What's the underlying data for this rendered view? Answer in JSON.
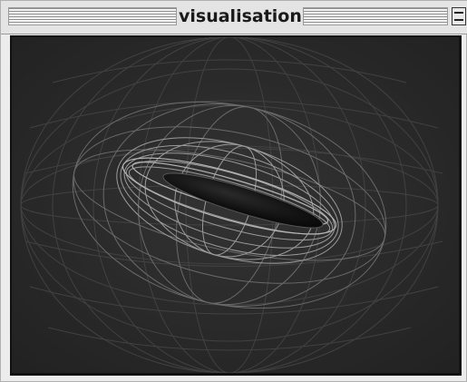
{
  "window": {
    "title": "visualisation"
  },
  "colors": {
    "background": "#2b2b2b",
    "wireframe": "#8a8a8a",
    "core": "#0d0d0d"
  },
  "icons": {
    "collapse": "collapse-box-icon"
  }
}
